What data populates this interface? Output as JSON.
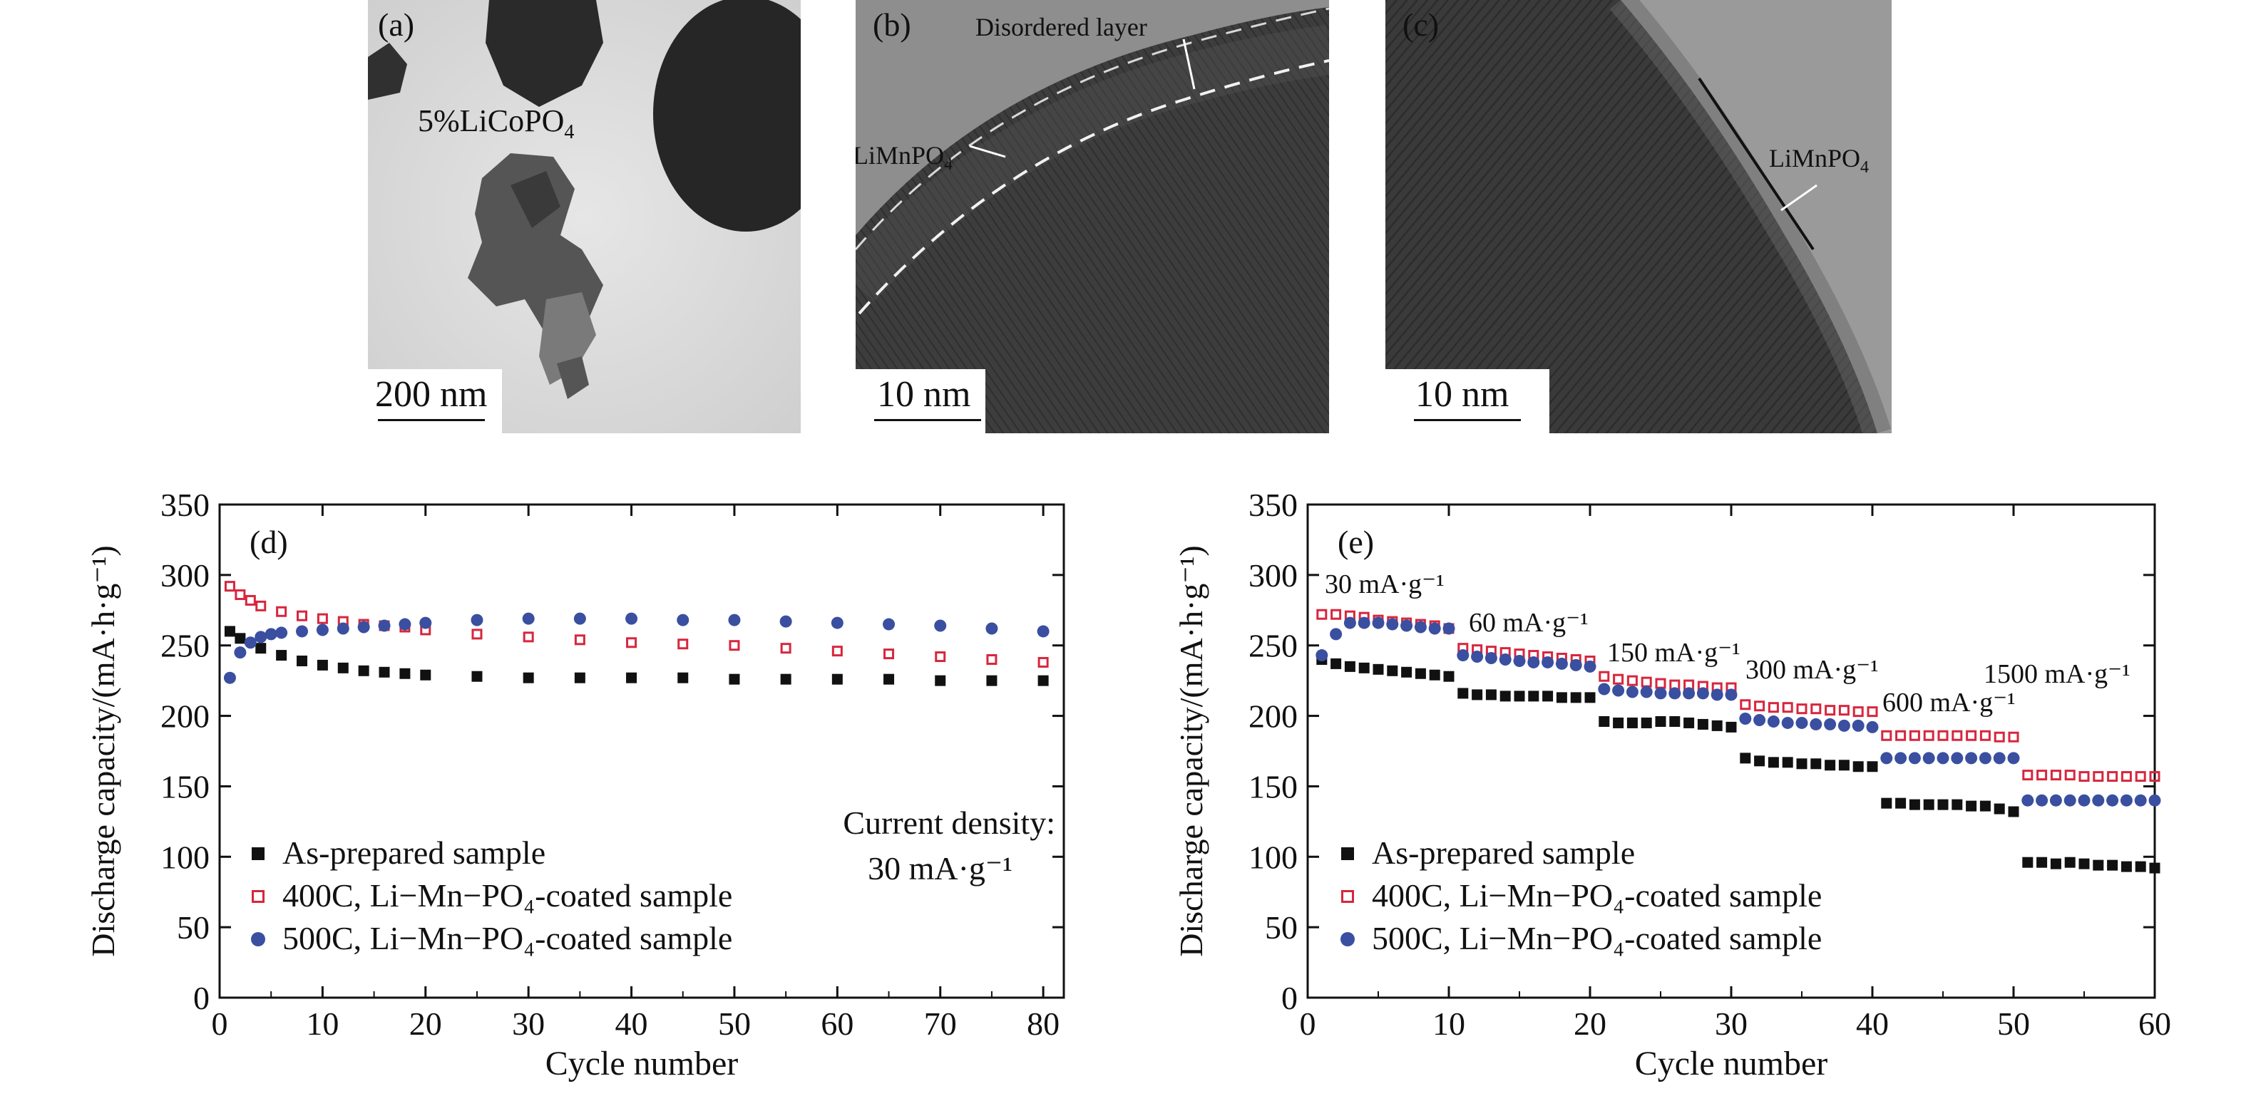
{
  "panels": {
    "a": {
      "label": "(a)",
      "material": "5%LiCoPO",
      "material_sub": "4",
      "scale": "200 nm"
    },
    "b": {
      "label": "(b)",
      "annotation_layer": "Disordered layer",
      "annotation_phase": "LiMnPO",
      "annotation_sub": "4",
      "scale": "10 nm"
    },
    "c": {
      "label": "(c)",
      "annotation_phase": "LiMnPO",
      "annotation_sub": "4",
      "scale": "10 nm"
    }
  },
  "chart_data": [
    {
      "type": "scatter",
      "panel_label": "(d)",
      "xlabel": "Cycle number",
      "ylabel": "Discharge capacity/(mA·h·g⁻¹)",
      "xlim": [
        0,
        82
      ],
      "ylim": [
        0,
        350
      ],
      "xticks": [
        0,
        10,
        20,
        30,
        40,
        50,
        60,
        70,
        80
      ],
      "yticks": [
        0,
        50,
        100,
        150,
        200,
        250,
        300,
        350
      ],
      "annotation_line1": "Current density:",
      "annotation_line2": "30 mA·g⁻¹",
      "legend": {
        "placement": "bottom-left"
      },
      "series": [
        {
          "name": "As-prepared sample",
          "marker": "filled-square",
          "color": "#111111",
          "x": [
            1,
            2,
            4,
            6,
            8,
            10,
            12,
            14,
            16,
            18,
            20,
            25,
            30,
            35,
            40,
            45,
            50,
            55,
            60,
            65,
            70,
            75,
            80
          ],
          "y": [
            260,
            255,
            248,
            243,
            239,
            236,
            234,
            232,
            231,
            230,
            229,
            228,
            227,
            227,
            227,
            227,
            226,
            226,
            226,
            226,
            225,
            225,
            225
          ]
        },
        {
          "name": "400C, Li−Mn−PO₄-coated sample",
          "marker": "open-square",
          "color": "#d7263d",
          "x": [
            1,
            2,
            3,
            4,
            6,
            8,
            10,
            12,
            14,
            16,
            18,
            20,
            25,
            30,
            35,
            40,
            45,
            50,
            55,
            60,
            65,
            70,
            75,
            80
          ],
          "y": [
            292,
            286,
            282,
            278,
            274,
            271,
            269,
            267,
            265,
            264,
            263,
            261,
            258,
            256,
            254,
            252,
            251,
            250,
            248,
            246,
            244,
            242,
            240,
            238
          ]
        },
        {
          "name": "500C, Li−Mn−PO₄-coated sample",
          "marker": "filled-circle",
          "color": "#3a4fa0",
          "x": [
            1,
            2,
            3,
            4,
            5,
            6,
            8,
            10,
            12,
            14,
            16,
            18,
            20,
            25,
            30,
            35,
            40,
            45,
            50,
            55,
            60,
            65,
            70,
            75,
            80
          ],
          "y": [
            227,
            245,
            252,
            256,
            258,
            259,
            260,
            261,
            262,
            263,
            264,
            265,
            266,
            268,
            269,
            269,
            269,
            268,
            268,
            267,
            266,
            265,
            264,
            262,
            260
          ]
        }
      ]
    },
    {
      "type": "scatter",
      "panel_label": "(e)",
      "xlabel": "Cycle number",
      "ylabel": "Discharge capacity/(mA·h·g⁻¹)",
      "xlim": [
        0,
        60
      ],
      "ylim": [
        0,
        350
      ],
      "xticks": [
        0,
        10,
        20,
        30,
        40,
        50,
        60
      ],
      "yticks": [
        0,
        50,
        100,
        150,
        200,
        250,
        300,
        350
      ],
      "rate_labels": [
        "30 mA·g⁻¹",
        "60 mA·g⁻¹",
        "150 mA·g⁻¹",
        "300 mA·g⁻¹",
        "600 mA·g⁻¹",
        "1500 mA·g⁻¹"
      ],
      "legend": {
        "placement": "bottom-left"
      },
      "series": [
        {
          "name": "As-prepared sample",
          "marker": "filled-square",
          "color": "#111111",
          "x": [
            1,
            2,
            3,
            4,
            5,
            6,
            7,
            8,
            9,
            10,
            11,
            12,
            13,
            14,
            15,
            16,
            17,
            18,
            19,
            20,
            21,
            22,
            23,
            24,
            25,
            26,
            27,
            28,
            29,
            30,
            31,
            32,
            33,
            34,
            35,
            36,
            37,
            38,
            39,
            40,
            41,
            42,
            43,
            44,
            45,
            46,
            47,
            48,
            49,
            50,
            51,
            52,
            53,
            54,
            55,
            56,
            57,
            58,
            59,
            60
          ],
          "y": [
            240,
            237,
            235,
            234,
            233,
            232,
            231,
            230,
            229,
            228,
            216,
            215,
            215,
            214,
            214,
            214,
            214,
            213,
            213,
            213,
            196,
            195,
            195,
            195,
            196,
            196,
            195,
            194,
            193,
            192,
            170,
            168,
            167,
            167,
            166,
            166,
            165,
            165,
            164,
            164,
            138,
            138,
            137,
            137,
            137,
            137,
            136,
            136,
            134,
            132,
            96,
            96,
            95,
            96,
            95,
            94,
            94,
            93,
            93,
            92
          ]
        },
        {
          "name": "400C, Li−Mn−PO₄-coated sample",
          "marker": "open-square",
          "color": "#d7263d",
          "x": [
            1,
            2,
            3,
            4,
            5,
            6,
            7,
            8,
            9,
            10,
            11,
            12,
            13,
            14,
            15,
            16,
            17,
            18,
            19,
            20,
            21,
            22,
            23,
            24,
            25,
            26,
            27,
            28,
            29,
            30,
            31,
            32,
            33,
            34,
            35,
            36,
            37,
            38,
            39,
            40,
            41,
            42,
            43,
            44,
            45,
            46,
            47,
            48,
            49,
            50,
            51,
            52,
            53,
            54,
            55,
            56,
            57,
            58,
            59,
            60
          ],
          "y": [
            272,
            272,
            271,
            270,
            268,
            267,
            266,
            265,
            264,
            262,
            248,
            247,
            246,
            245,
            244,
            243,
            242,
            241,
            240,
            239,
            228,
            226,
            225,
            224,
            223,
            222,
            222,
            221,
            220,
            220,
            208,
            207,
            206,
            206,
            205,
            205,
            204,
            204,
            203,
            203,
            186,
            186,
            186,
            186,
            186,
            186,
            186,
            186,
            185,
            185,
            158,
            158,
            158,
            158,
            157,
            157,
            157,
            157,
            157,
            157
          ]
        },
        {
          "name": "500C, Li−Mn−PO₄-coated sample",
          "marker": "filled-circle",
          "color": "#3a4fa0",
          "x": [
            1,
            2,
            3,
            4,
            5,
            6,
            7,
            8,
            9,
            10,
            11,
            12,
            13,
            14,
            15,
            16,
            17,
            18,
            19,
            20,
            21,
            22,
            23,
            24,
            25,
            26,
            27,
            28,
            29,
            30,
            31,
            32,
            33,
            34,
            35,
            36,
            37,
            38,
            39,
            40,
            41,
            42,
            43,
            44,
            45,
            46,
            47,
            48,
            49,
            50,
            51,
            52,
            53,
            54,
            55,
            56,
            57,
            58,
            59,
            60
          ],
          "y": [
            243,
            258,
            266,
            266,
            266,
            265,
            264,
            263,
            262,
            262,
            243,
            242,
            241,
            240,
            239,
            238,
            238,
            237,
            236,
            235,
            219,
            218,
            217,
            217,
            216,
            216,
            216,
            216,
            215,
            215,
            198,
            197,
            196,
            195,
            195,
            194,
            194,
            193,
            193,
            192,
            170,
            170,
            170,
            170,
            170,
            170,
            170,
            170,
            170,
            170,
            140,
            140,
            140,
            140,
            140,
            140,
            140,
            140,
            140,
            140
          ]
        }
      ]
    }
  ]
}
